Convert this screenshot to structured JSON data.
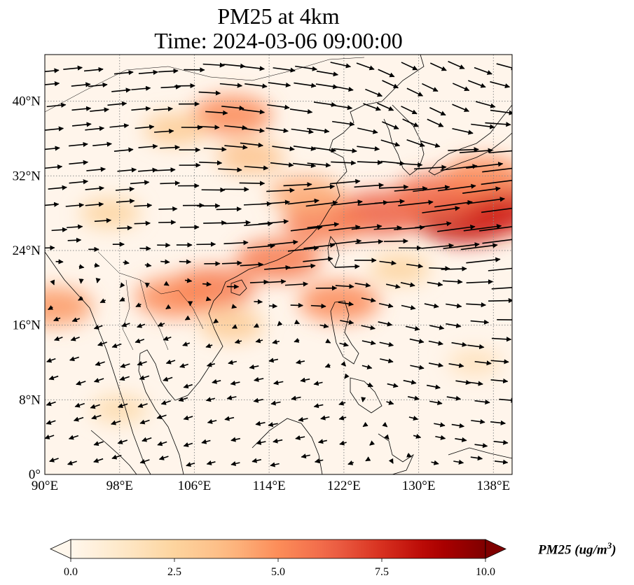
{
  "title": {
    "line1": "PM25 at 4km",
    "line2": "Time: 2024-03-06 09:00:00"
  },
  "map": {
    "projection": "PlateCarree",
    "extent": {
      "lon": [
        90,
        140
      ],
      "lat": [
        0,
        45
      ]
    },
    "gridlines": {
      "style": "dotted",
      "color": "#8c8c8c"
    },
    "xticks": [
      {
        "value": 90,
        "label": "90°E"
      },
      {
        "value": 98,
        "label": "98°E"
      },
      {
        "value": 106,
        "label": "106°E"
      },
      {
        "value": 114,
        "label": "114°E"
      },
      {
        "value": 122,
        "label": "122°E"
      },
      {
        "value": 130,
        "label": "130°E"
      },
      {
        "value": 138,
        "label": "138°E"
      }
    ],
    "yticks": [
      {
        "value": 0,
        "label": "0°"
      },
      {
        "value": 8,
        "label": "8°N"
      },
      {
        "value": 16,
        "label": "16°N"
      },
      {
        "value": 24,
        "label": "24°N"
      },
      {
        "value": 32,
        "label": "32°N"
      },
      {
        "value": 40,
        "label": "40°N"
      }
    ],
    "coastline_color": "#000000",
    "wind_vectors": {
      "color": "#000000",
      "layer": "quiver"
    }
  },
  "chart_data": {
    "type": "heatmap",
    "variable": "PM25",
    "units": "ug/m^3",
    "pm25_hotspots": [
      {
        "lon": 135,
        "lat": 27.5,
        "value": 9.5
      },
      {
        "lon": 139,
        "lat": 28.5,
        "value": 9.0
      },
      {
        "lon": 126,
        "lat": 28.0,
        "value": 7.5
      },
      {
        "lon": 132,
        "lat": 30.0,
        "value": 7.0
      },
      {
        "lon": 120,
        "lat": 27.0,
        "value": 6.5
      },
      {
        "lon": 115,
        "lat": 23.0,
        "value": 6.5
      },
      {
        "lon": 108,
        "lat": 20.0,
        "value": 6.5
      },
      {
        "lon": 110,
        "lat": 38.5,
        "value": 6.0
      },
      {
        "lon": 104,
        "lat": 19.0,
        "value": 6.0
      },
      {
        "lon": 91,
        "lat": 18.0,
        "value": 5.5
      },
      {
        "lon": 121.5,
        "lat": 18.5,
        "value": 6.0
      },
      {
        "lon": 137,
        "lat": 32.0,
        "value": 6.0
      },
      {
        "lon": 112,
        "lat": 34.0,
        "value": 4.0
      },
      {
        "lon": 104,
        "lat": 37.0,
        "value": 3.5
      },
      {
        "lon": 97,
        "lat": 28.0,
        "value": 3.0
      },
      {
        "lon": 118,
        "lat": 30.0,
        "value": 5.0
      },
      {
        "lon": 98,
        "lat": 7.0,
        "value": 2.5
      },
      {
        "lon": 128,
        "lat": 22.0,
        "value": 3.0
      },
      {
        "lon": 110,
        "lat": 16.0,
        "value": 3.5
      },
      {
        "lon": 136,
        "lat": 12.0,
        "value": 2.0
      }
    ],
    "background_value": 0.3,
    "colorbar": {
      "cmap": "OrRd",
      "vmin": 0.0,
      "vmax": 10.0,
      "extend": "both",
      "orientation": "horizontal",
      "ticks": [
        {
          "value": 0.0,
          "label": "0.0"
        },
        {
          "value": 2.5,
          "label": "2.5"
        },
        {
          "value": 5.0,
          "label": "5.0"
        },
        {
          "value": 7.5,
          "label": "7.5"
        },
        {
          "value": 10.0,
          "label": "10.0"
        }
      ],
      "label": "PM25",
      "label_units_base": "(ug/m",
      "label_units_exp": "3",
      "label_units_close": ")"
    },
    "wind_flow": [
      {
        "lon": 94,
        "lat": 38,
        "u": 3,
        "v": 0.3,
        "note": "westerly north"
      },
      {
        "lon": 120,
        "lat": 28,
        "u": 5,
        "v": 0.6,
        "note": "strong westerly jet"
      },
      {
        "lon": 135,
        "lat": 29,
        "u": 6,
        "v": 0.8,
        "note": "jet core"
      },
      {
        "lon": 118,
        "lat": 36,
        "u": 3.5,
        "v": -0.5,
        "note": "northwesterly"
      },
      {
        "lon": 130,
        "lat": 40,
        "u": 2.5,
        "v": -1.2,
        "note": "northwesterly"
      },
      {
        "lon": 98,
        "lat": 8,
        "u": -1.5,
        "v": -0.5,
        "note": "easterly tropics"
      },
      {
        "lon": 115,
        "lat": 8,
        "u": -1.5,
        "v": -0.3,
        "note": "easterly tropics"
      },
      {
        "lon": 128,
        "lat": 18,
        "u": 2.2,
        "v": -0.5,
        "note": "trade wind"
      }
    ]
  }
}
